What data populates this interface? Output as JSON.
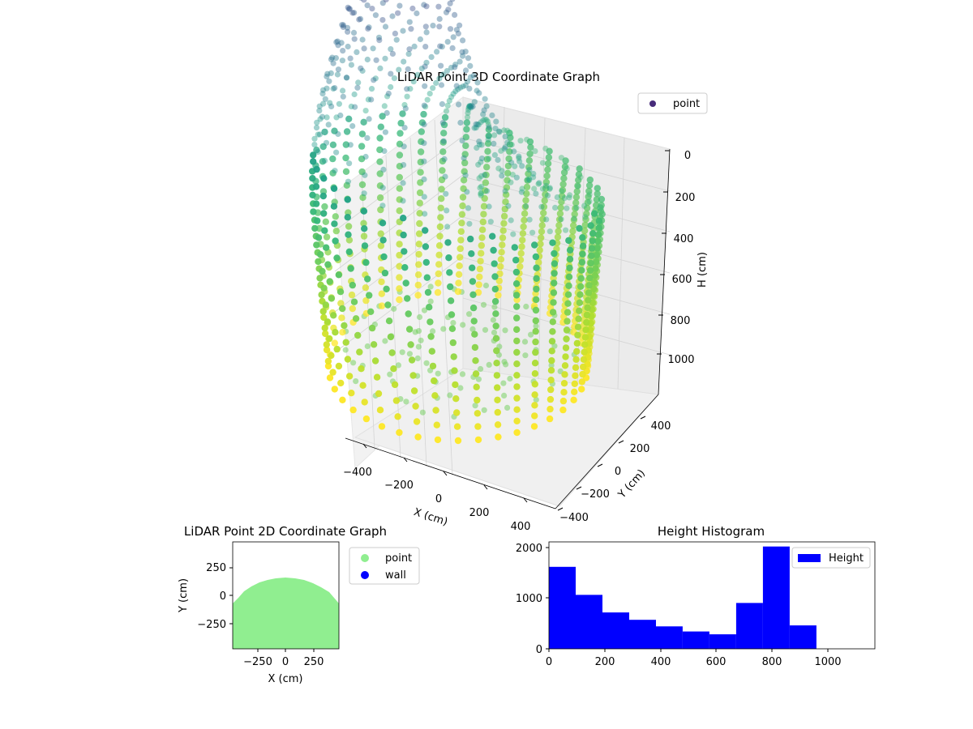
{
  "figure": {
    "panel_3d": {
      "title": "LiDAR Point 3D Coordinate Graph",
      "legend": {
        "label": "point",
        "color": "#472c7a"
      },
      "x_axis": {
        "label": "X (cm)",
        "ticks": [
          "−400",
          "−200",
          "0",
          "200",
          "400"
        ]
      },
      "y_axis": {
        "label": "Y (cm)",
        "ticks": [
          "400",
          "200",
          "0",
          "−200",
          "−400"
        ]
      },
      "z_axis": {
        "label": "H (cm)",
        "ticks": [
          "0",
          "200",
          "400",
          "600",
          "800",
          "1000"
        ],
        "inverted": true
      }
    },
    "panel_2d": {
      "title": "LiDAR Point 2D Coordinate Graph",
      "x_axis": {
        "label": "X (cm)",
        "ticks": [
          "−250",
          "0",
          "250"
        ]
      },
      "y_axis": {
        "label": "Y (cm)",
        "ticks": [
          "250",
          "0",
          "−250"
        ]
      },
      "legend": [
        {
          "label": "point",
          "color": "#90ee90"
        },
        {
          "label": "wall",
          "color": "#0000ff"
        }
      ]
    },
    "panel_hist": {
      "title": "Height Histogram",
      "legend": {
        "label": "Height",
        "color": "#0000ff"
      },
      "x_ticks": [
        "0",
        "200",
        "400",
        "600",
        "800",
        "1000"
      ],
      "y_ticks": [
        "0",
        "1000",
        "2000"
      ]
    }
  },
  "chart_data": [
    {
      "type": "scatter",
      "title": "LiDAR Point 3D Coordinate Graph",
      "xlabel": "X (cm)",
      "ylabel": "Y (cm)",
      "zlabel": "H (cm)",
      "xlim": [
        -500,
        500
      ],
      "ylim": [
        -500,
        500
      ],
      "zlim": [
        1150,
        0
      ],
      "colormap": "viridis",
      "series": [
        {
          "name": "point"
        }
      ]
    },
    {
      "type": "scatter",
      "title": "LiDAR Point 2D Coordinate Graph",
      "xlabel": "X (cm)",
      "ylabel": "Y (cm)",
      "xlim": [
        -500,
        500
      ],
      "ylim": [
        -500,
        500
      ],
      "series": [
        {
          "name": "point"
        },
        {
          "name": "wall"
        }
      ]
    },
    {
      "type": "bar",
      "title": "Height Histogram",
      "bin_edges": [
        0,
        96,
        192,
        288,
        384,
        480,
        576,
        672,
        768,
        864,
        960
      ],
      "values": [
        1610,
        1060,
        715,
        570,
        440,
        340,
        285,
        900,
        2010,
        460
      ],
      "xlim": [
        0,
        1170
      ],
      "ylim": [
        0,
        2100
      ],
      "series": [
        {
          "name": "Height"
        }
      ]
    }
  ]
}
